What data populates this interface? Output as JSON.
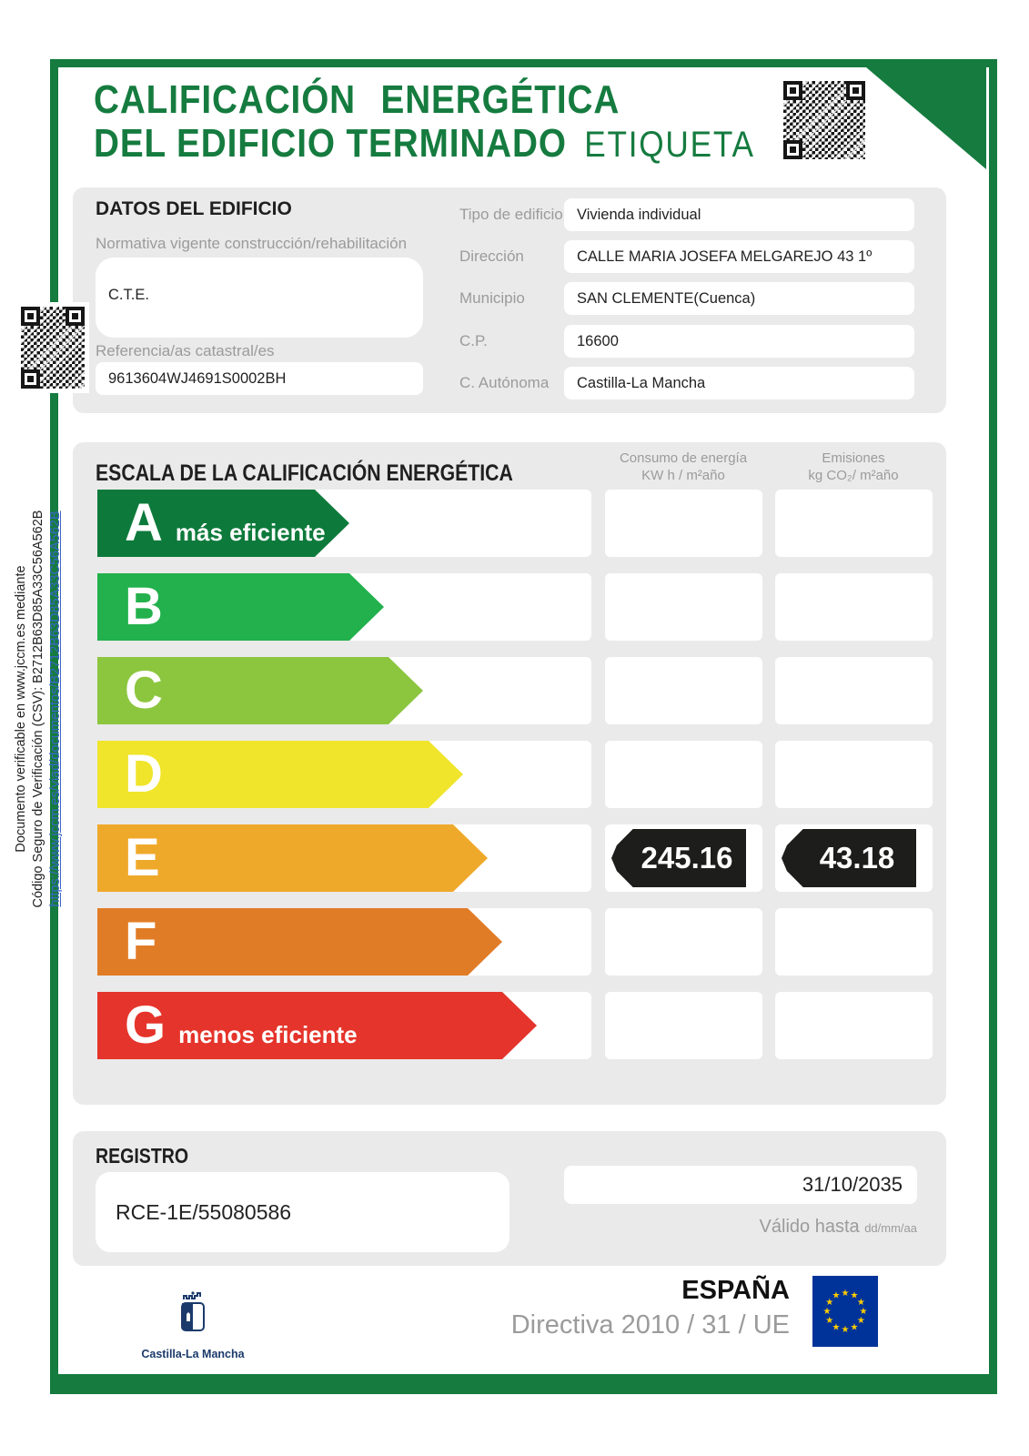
{
  "sidebar": {
    "line1": "Documento verificable en www.jccm.es mediante",
    "line2": "Código Seguro de Verificación (CSV): B2712B63D85A33C56A562B",
    "link": "https://www.jccm.es/viad/documentos/B2712B63D85A33C56A562B"
  },
  "header": {
    "title_line1": "CALIFICACIÓN ENERGÉTICA",
    "title_line2": "DEL EDIFICIO TERMINADO",
    "title_tag": "ETIQUETA"
  },
  "building": {
    "section_title": "DATOS DEL EDIFICIO",
    "normativa_label": "Normativa vigente construcción/rehabilitación",
    "normativa_value": "C.T.E.",
    "catastral_label": "Referencia/as catastral/es",
    "catastral_value": "9613604WJ4691S0002BH",
    "fields": [
      {
        "label": "Tipo de edificio",
        "value": "Vivienda individual"
      },
      {
        "label": "Dirección",
        "value": "CALLE MARIA JOSEFA MELGAREJO 43 1º"
      },
      {
        "label": "Municipio",
        "value": "SAN CLEMENTE(Cuenca)"
      },
      {
        "label": "C.P.",
        "value": "16600"
      },
      {
        "label": "C. Autónoma",
        "value": "Castilla-La Mancha"
      }
    ]
  },
  "scale": {
    "section_title": "ESCALA DE LA CALIFICACIÓN ENERGÉTICA",
    "col_consumo_line1": "Consumo de energía",
    "col_consumo_line2": "KW h / m²año",
    "col_emisiones_line1": "Emisiones",
    "col_emisiones_line2": "kg CO₂/ m²año",
    "ratings": [
      {
        "letter": "A",
        "note": "más eficiente",
        "color": "#0D7A3B",
        "width_pct": 51
      },
      {
        "letter": "B",
        "note": "",
        "color": "#22B14C",
        "width_pct": 58
      },
      {
        "letter": "C",
        "note": "",
        "color": "#8CC63F",
        "width_pct": 66
      },
      {
        "letter": "D",
        "note": "",
        "color": "#F0E52B",
        "width_pct": 74
      },
      {
        "letter": "E",
        "note": "",
        "color": "#EFA92A",
        "width_pct": 79
      },
      {
        "letter": "F",
        "note": "",
        "color": "#E17C26",
        "width_pct": 82
      },
      {
        "letter": "G",
        "note": "menos eficiente",
        "color": "#E5342B",
        "width_pct": 89
      }
    ],
    "selected": {
      "letter": "E",
      "consumo": "245.16",
      "emisiones": "43.18"
    }
  },
  "registro": {
    "section_title": "REGISTRO",
    "code": "RCE-1E/55080586",
    "valid_date": "31/10/2035",
    "valid_label": "Válido hasta",
    "valid_format": "dd/mm/aa"
  },
  "footer": {
    "country": "ESPAÑA",
    "directive": "Directiva 2010 / 31 / UE",
    "region": "Castilla-La Mancha"
  },
  "colors": {
    "brand_green": "#157B3F",
    "tag_black": "#1D1D1B",
    "link_blue": "#3A66C9",
    "eu_blue": "#003399",
    "eu_star": "#FFCC00"
  }
}
